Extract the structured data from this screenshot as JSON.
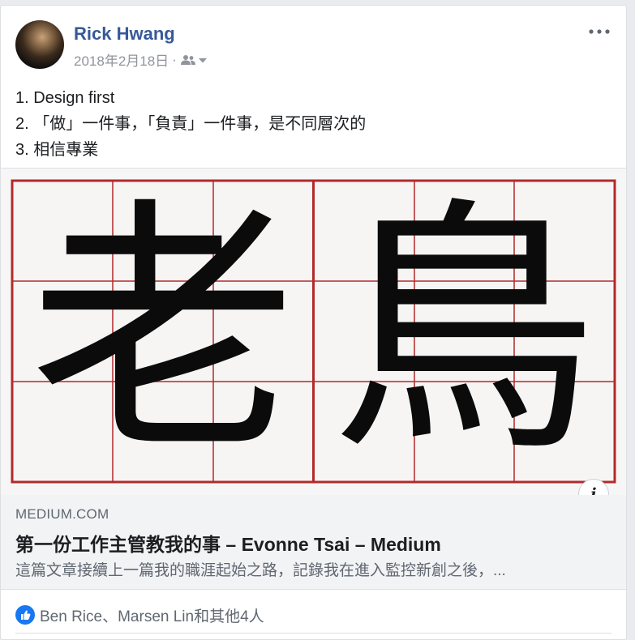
{
  "post": {
    "author": "Rick Hwang",
    "date": "2018年2月18日",
    "separator": "·",
    "lines": [
      "1. Design first",
      "2. 「做」一件事，「負責」一件事，是不同層次的",
      "3. 相信專業"
    ]
  },
  "link_preview": {
    "image_characters": [
      "老",
      "鳥"
    ],
    "domain": "MEDIUM.COM",
    "title": "第一份工作主管教我的事 – Evonne Tsai – Medium",
    "description": "這篇文章接續上一篇我的職涯起始之路，記錄我在進入監控新創之後，...",
    "info_label": "i"
  },
  "reactions": {
    "text": "Ben Rice、Marsen Lin和其他4人"
  },
  "colors": {
    "author_link": "#385898",
    "grid_red": "#b22a2a",
    "like_blue": "#1877f2",
    "meta_gray": "#90949c"
  },
  "icons": {
    "audience": "friends-icon",
    "caret": "caret-down-icon",
    "more": "more-options-icon",
    "like": "like-icon",
    "info": "info-icon"
  }
}
